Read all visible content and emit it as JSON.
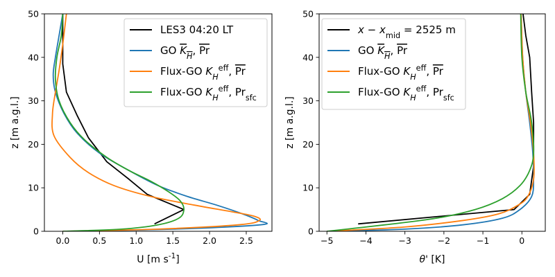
{
  "chart_data": [
    {
      "type": "line",
      "panel": "left",
      "xlabel": "U [m s$^{-1}$]",
      "ylabel": "z [m a.g.l.]",
      "xlim": [
        -0.25,
        2.85
      ],
      "ylim": [
        0,
        50
      ],
      "xticks": [
        0.0,
        0.5,
        1.0,
        1.5,
        2.0,
        2.5
      ],
      "xtick_labels": [
        "0.0",
        "0.5",
        "1.0",
        "1.5",
        "2.0",
        "2.5"
      ],
      "yticks": [
        0,
        10,
        20,
        30,
        40,
        50
      ],
      "ytick_labels": [
        "0",
        "10",
        "20",
        "30",
        "40",
        "50"
      ],
      "grid": false,
      "legend_position": "top-right",
      "series": [
        {
          "name": "LES3 04:20 LT",
          "color": "#000000",
          "x": [
            1.25,
            1.65,
            1.15,
            0.9,
            0.6,
            0.35,
            0.2,
            0.05,
            0.0,
            0.0,
            0.0
          ],
          "y": [
            1.7,
            5.0,
            8.5,
            12.0,
            16.0,
            21.5,
            26.5,
            32.0,
            38.5,
            45.0,
            50.0
          ]
        },
        {
          "name": "GO $\\overline{K_H}$, $\\overline{\\mathrm{Pr}}$",
          "color": "#1f77b4",
          "x": [
            0.0,
            1.5,
            2.7,
            2.66,
            2.45,
            2.1,
            1.7,
            1.3,
            0.9,
            0.5,
            0.2,
            0.02,
            -0.1,
            -0.13,
            -0.1,
            -0.05,
            0.0
          ],
          "y": [
            0.0,
            0.5,
            1.5,
            2.5,
            4.0,
            6.0,
            8.0,
            10.5,
            14.0,
            18.0,
            22.5,
            27.0,
            32.0,
            36.0,
            40.0,
            45.0,
            50.0
          ]
        },
        {
          "name": "Flux-GO $K_H^{\\mathrm{eff}}$, $\\overline{\\mathrm{Pr}}$",
          "color": "#ff7f0e",
          "x": [
            0.0,
            1.3,
            2.4,
            2.68,
            2.6,
            2.3,
            1.8,
            1.2,
            0.7,
            0.35,
            0.1,
            -0.12,
            -0.14,
            -0.1,
            -0.05,
            0.0,
            0.05
          ],
          "y": [
            0.0,
            0.5,
            1.5,
            2.5,
            3.5,
            4.5,
            6.0,
            8.0,
            10.5,
            13.5,
            17.0,
            22.0,
            27.0,
            32.0,
            37.0,
            43.0,
            50.0
          ]
        },
        {
          "name": "Flux-GO $K_H^{\\mathrm{eff}}$, $\\mathrm{Pr_{sfc}}$",
          "color": "#2ca02c",
          "x": [
            0.0,
            0.8,
            1.3,
            1.58,
            1.65,
            1.6,
            1.45,
            1.2,
            0.9,
            0.6,
            0.3,
            0.1,
            -0.05,
            -0.1,
            -0.08,
            -0.02,
            0.0
          ],
          "y": [
            0.0,
            0.5,
            1.5,
            3.0,
            5.0,
            7.0,
            9.0,
            11.5,
            14.0,
            17.0,
            21.0,
            25.0,
            30.0,
            35.0,
            40.0,
            45.0,
            50.0
          ]
        }
      ]
    },
    {
      "type": "line",
      "panel": "right",
      "xlabel": "$\\theta'$ [K]",
      "ylabel": "z [m a.g.l.]",
      "xlim": [
        -5.2,
        0.6
      ],
      "ylim": [
        0,
        50
      ],
      "xticks": [
        -5,
        -4,
        -3,
        -2,
        -1,
        0
      ],
      "xtick_labels": [
        "−5",
        "−4",
        "−3",
        "−2",
        "−1",
        "0"
      ],
      "yticks": [
        0,
        10,
        20,
        30,
        40,
        50
      ],
      "ytick_labels": [
        "0",
        "10",
        "20",
        "30",
        "40",
        "50"
      ],
      "grid": false,
      "legend_position": "top-right",
      "series": [
        {
          "name": "$x - x_{\\mathrm{mid}} = 2525$ m",
          "color": "#000000",
          "x": [
            -4.2,
            -0.2,
            0.2,
            0.3,
            0.3,
            0.25,
            0.2,
            0.1,
            0.03
          ],
          "y": [
            1.7,
            5.0,
            8.5,
            15.0,
            25.0,
            32.0,
            40.0,
            45.0,
            50.0
          ]
        },
        {
          "name": "GO $\\overline{K_H}$, $\\overline{\\mathrm{Pr}}$",
          "color": "#1f77b4",
          "x": [
            -5.0,
            -3.0,
            -1.5,
            -0.5,
            -0.05,
            0.25,
            0.3,
            0.28,
            0.2,
            0.1,
            0.02,
            -0.02
          ],
          "y": [
            0.0,
            0.5,
            1.5,
            3.0,
            5.0,
            8.0,
            12.0,
            18.0,
            25.0,
            32.0,
            40.0,
            50.0
          ]
        },
        {
          "name": "Flux-GO $K_H^{\\mathrm{eff}}$, $\\overline{\\mathrm{Pr}}$",
          "color": "#ff7f0e",
          "x": [
            -5.0,
            -3.0,
            -1.5,
            -0.6,
            -0.1,
            0.15,
            0.3,
            0.3,
            0.22,
            0.1,
            0.02,
            -0.02
          ],
          "y": [
            0.0,
            1.0,
            2.5,
            4.0,
            6.0,
            8.0,
            12.0,
            18.0,
            25.0,
            32.0,
            40.0,
            50.0
          ]
        },
        {
          "name": "Flux-GO $K_H^{\\mathrm{eff}}$, $\\mathrm{Pr_{sfc}}$",
          "color": "#2ca02c",
          "x": [
            -5.0,
            -3.5,
            -2.2,
            -1.2,
            -0.5,
            -0.05,
            0.2,
            0.3,
            0.25,
            0.1,
            0.0,
            -0.03
          ],
          "y": [
            0.0,
            1.5,
            3.0,
            5.0,
            7.5,
            10.5,
            14.0,
            18.0,
            25.0,
            32.0,
            40.0,
            50.0
          ]
        }
      ]
    }
  ]
}
